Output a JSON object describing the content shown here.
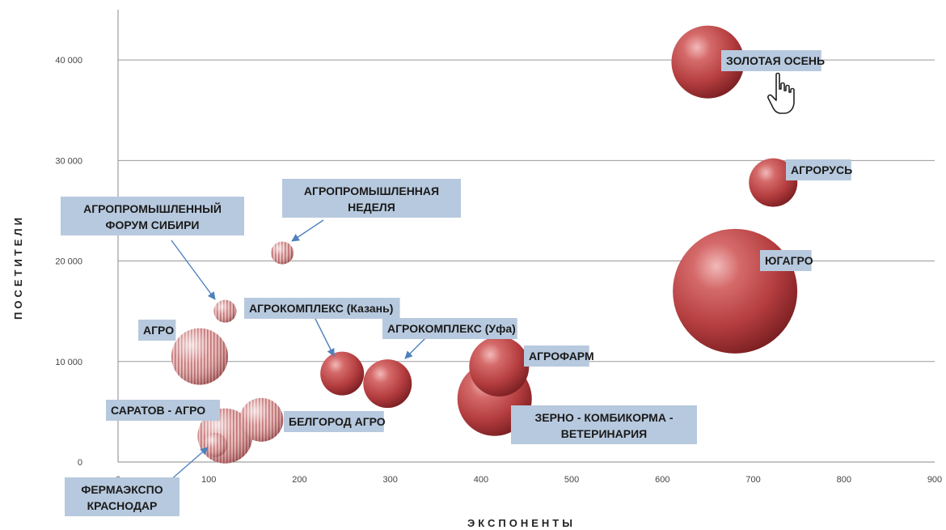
{
  "chart_data": {
    "type": "bubble",
    "xlabel": "ЭКСПОНЕНТЫ",
    "ylabel": "ПОСЕТИТЕЛИ",
    "xlim": [
      0,
      900
    ],
    "ylim": [
      0,
      45000
    ],
    "xticks": [
      "0",
      "100",
      "200",
      "300",
      "400",
      "500",
      "600",
      "700",
      "800",
      "900"
    ],
    "yticks": [
      "0",
      "10 000",
      "20 000",
      "30 000",
      "40 000"
    ],
    "grid": "horizontal",
    "points": [
      {
        "label": "ЗОЛОТАЯ ОСЕНЬ",
        "x": 650,
        "y": 39800,
        "size": 45,
        "style": "solid"
      },
      {
        "label": "АГРОРУСЬ",
        "x": 722,
        "y": 27800,
        "size": 30,
        "style": "solid"
      },
      {
        "label": "ЮГАГРО",
        "x": 680,
        "y": 17000,
        "size": 77,
        "style": "solid"
      },
      {
        "label": "АГРОПРОМЫШЛЕННАЯ НЕДЕЛЯ",
        "x": 181,
        "y": 20800,
        "size": 14,
        "style": "striped"
      },
      {
        "label": "АГРОПРОМЫШЛЕННЫЙ ФОРУМ СИБИРИ",
        "x": 118,
        "y": 15000,
        "size": 14,
        "style": "striped"
      },
      {
        "label": "АГРО",
        "x": 90,
        "y": 10500,
        "size": 35,
        "style": "striped"
      },
      {
        "label": "АГРОКОМПЛЕКС (Казань)",
        "x": 247,
        "y": 8800,
        "size": 27,
        "style": "solid"
      },
      {
        "label": "АГРОКОМПЛЕКС (Уфа)",
        "x": 297,
        "y": 7800,
        "size": 30,
        "style": "solid"
      },
      {
        "label": "АГРОФАРМ",
        "x": 420,
        "y": 9500,
        "size": 37,
        "style": "solid"
      },
      {
        "label": "ЗЕРНО - КОМБИКОРМА - ВЕТЕРИНАРИЯ",
        "x": 415,
        "y": 6300,
        "size": 46,
        "style": "solid"
      },
      {
        "label": "БЕЛГОРОД АГРО",
        "x": 158,
        "y": 4200,
        "size": 27,
        "style": "striped"
      },
      {
        "label": "САРАТОВ  - АГРО",
        "x": 118,
        "y": 2600,
        "size": 34,
        "style": "striped"
      },
      {
        "label": "ФЕРМАЭКСПО КРАСНОДАР",
        "x": 107,
        "y": 1700,
        "size": 15,
        "style": "striped"
      }
    ]
  }
}
